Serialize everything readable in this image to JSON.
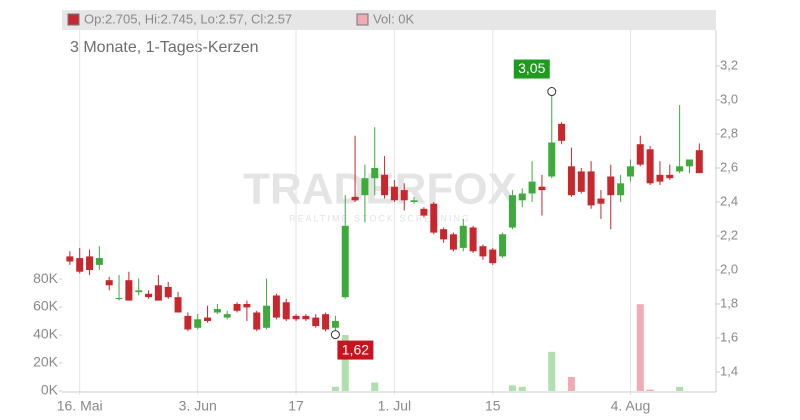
{
  "chart_data": {
    "type": "candlestick",
    "subtitle": "3 Monate, 1-Tages-Kerzen",
    "legend_price": "Op:2.705, Hi:2.745, Lo:2.57, Cl:2.57",
    "legend_volume": "Vol: 0K",
    "watermark": "TRADERFOX",
    "watermark_sub": "REALTIME STOCK SCREENING",
    "up_color": "#3cab3c",
    "down_color": "#c8282d",
    "volume_up_color": "#ade0ad",
    "volume_down_color": "#f2aab3",
    "categories": [
      null,
      "16. Mai",
      null,
      null,
      null,
      null,
      null,
      null,
      null,
      null,
      null,
      null,
      null,
      "3. Jun",
      null,
      null,
      null,
      null,
      null,
      null,
      null,
      null,
      null,
      "17",
      null,
      null,
      null,
      null,
      null,
      null,
      null,
      null,
      null,
      "1. Jul",
      null,
      null,
      null,
      null,
      null,
      null,
      null,
      null,
      null,
      "15",
      null,
      null,
      null,
      null,
      null,
      null,
      null,
      null,
      null,
      null,
      null,
      null,
      null,
      "4. Aug",
      null,
      null,
      null,
      null,
      null,
      null,
      null
    ],
    "open": [
      2.08,
      2.07,
      2.08,
      2.03,
      1.94,
      1.83,
      1.94,
      1.87,
      1.86,
      1.91,
      1.9,
      1.84,
      1.73,
      1.66,
      1.72,
      1.75,
      1.72,
      1.8,
      1.8,
      1.75,
      1.66,
      1.85,
      1.81,
      1.73,
      1.73,
      1.72,
      1.74,
      1.66,
      1.84,
      2.43,
      2.44,
      2.54,
      2.56,
      2.49,
      2.47,
      2.4,
      2.36,
      2.39,
      2.24,
      2.21,
      2.13,
      2.25,
      2.14,
      2.12,
      2.08,
      2.25,
      2.41,
      2.45,
      2.49,
      2.55,
      2.86,
      2.61,
      2.58,
      2.58,
      2.42,
      2.55,
      2.44,
      2.55,
      2.74,
      2.71,
      2.56,
      2.56,
      2.58,
      2.61,
      2.705
    ],
    "high": [
      2.11,
      2.13,
      2.12,
      2.14,
      1.96,
      1.97,
      1.99,
      1.95,
      1.88,
      1.97,
      1.93,
      1.87,
      1.75,
      1.74,
      1.79,
      1.8,
      1.76,
      1.81,
      1.82,
      1.76,
      1.95,
      1.86,
      1.83,
      1.74,
      1.74,
      1.74,
      1.75,
      1.73,
      2.44,
      2.79,
      2.62,
      2.84,
      2.67,
      2.53,
      2.51,
      2.43,
      2.37,
      2.4,
      2.25,
      2.22,
      2.3,
      2.26,
      2.15,
      2.13,
      2.22,
      2.47,
      2.48,
      2.64,
      2.56,
      3.05,
      2.87,
      2.72,
      2.6,
      2.64,
      2.47,
      2.62,
      2.56,
      2.65,
      2.79,
      2.73,
      2.64,
      2.62,
      2.97,
      2.65,
      2.745
    ],
    "low": [
      2.03,
      1.98,
      1.97,
      2.0,
      1.88,
      1.82,
      1.82,
      1.85,
      1.83,
      1.82,
      1.83,
      1.75,
      1.64,
      1.65,
      1.69,
      1.74,
      1.71,
      1.75,
      1.7,
      1.64,
      1.65,
      1.71,
      1.7,
      1.7,
      1.7,
      1.66,
      1.64,
      1.62,
      1.83,
      2.4,
      2.28,
      2.44,
      2.42,
      2.4,
      2.35,
      2.39,
      2.31,
      2.21,
      2.16,
      2.11,
      2.11,
      2.1,
      2.06,
      2.03,
      2.07,
      2.24,
      2.37,
      2.4,
      2.32,
      2.54,
      2.74,
      2.43,
      2.45,
      2.36,
      2.3,
      2.24,
      2.4,
      2.52,
      2.61,
      2.5,
      2.5,
      2.53,
      2.57,
      2.57,
      2.57
    ],
    "close": [
      2.05,
      1.99,
      2.0,
      2.07,
      1.91,
      1.835,
      1.82,
      1.88,
      1.84,
      1.82,
      1.84,
      1.75,
      1.65,
      1.71,
      1.7,
      1.77,
      1.74,
      1.76,
      1.78,
      1.65,
      1.79,
      1.72,
      1.71,
      1.71,
      1.71,
      1.67,
      1.65,
      1.7,
      2.26,
      2.41,
      2.54,
      2.6,
      2.44,
      2.41,
      2.41,
      2.41,
      2.32,
      2.22,
      2.18,
      2.12,
      2.26,
      2.11,
      2.08,
      2.04,
      2.21,
      2.44,
      2.45,
      2.52,
      2.47,
      2.75,
      2.76,
      2.44,
      2.46,
      2.38,
      2.39,
      2.44,
      2.51,
      2.61,
      2.62,
      2.51,
      2.52,
      2.54,
      2.61,
      2.65,
      2.57
    ],
    "volume": [
      0,
      0,
      0,
      0,
      0,
      0,
      0,
      0,
      0,
      0,
      0,
      0,
      0,
      0,
      0,
      0,
      0,
      0,
      0,
      0,
      0,
      0,
      0,
      0,
      0,
      0,
      0,
      3000,
      40000,
      0,
      0,
      6000,
      0,
      0,
      0,
      0,
      0,
      0,
      0,
      0,
      0,
      0,
      0,
      0,
      0,
      4000,
      3000,
      0,
      0,
      28000,
      0,
      10000,
      0,
      0,
      0,
      0,
      0,
      0,
      62000,
      1000,
      0,
      0,
      3000,
      0,
      0
    ],
    "ylim": [
      1.288,
      3.412
    ],
    "yticks": [
      {
        "value": 1.4,
        "label": "1,4"
      },
      {
        "value": 1.6,
        "label": "1,6"
      },
      {
        "value": 1.8,
        "label": "1,8"
      },
      {
        "value": 2.0,
        "label": "2,0"
      },
      {
        "value": 2.2,
        "label": "2,2"
      },
      {
        "value": 2.4,
        "label": "2,4"
      },
      {
        "value": 2.6,
        "label": "2,6"
      },
      {
        "value": 2.8,
        "label": "2,8"
      },
      {
        "value": 3.0,
        "label": "3,0"
      },
      {
        "value": 3.2,
        "label": "3,2"
      }
    ],
    "vlim": [
      0,
      258000
    ],
    "vticks": [
      {
        "value": 0,
        "label": "0K"
      },
      {
        "value": 20000,
        "label": "20K"
      },
      {
        "value": 40000,
        "label": "40K"
      },
      {
        "value": 60000,
        "label": "60K"
      },
      {
        "value": 80000,
        "label": "80K"
      }
    ],
    "annotations": [
      {
        "text": "3,05",
        "value": 3.05,
        "kind": "high"
      },
      {
        "text": "1,62",
        "value": 1.62,
        "kind": "low"
      }
    ]
  }
}
